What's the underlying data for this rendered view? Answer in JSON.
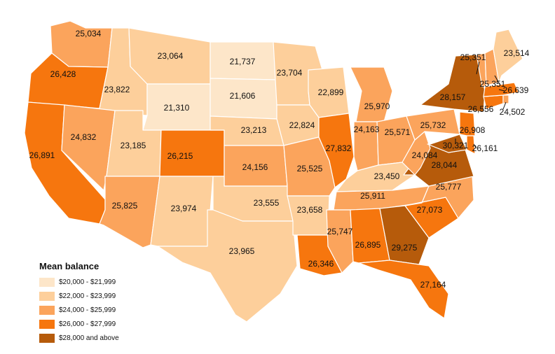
{
  "legend": {
    "title": "Mean balance",
    "bins": [
      {
        "label": "$20,000 - $21,999",
        "color": "#fde6c9"
      },
      {
        "label": "$22,000 - $23,999",
        "color": "#fdcf9b"
      },
      {
        "label": "$24,000 - $25,999",
        "color": "#fba45c"
      },
      {
        "label": "$26,000 - $27,999",
        "color": "#f6760e"
      },
      {
        "label": "$28,000 and above",
        "color": "#b65b0b"
      }
    ]
  },
  "states": [
    {
      "abbr": "WA",
      "value": "25,034",
      "bin": 2
    },
    {
      "abbr": "OR",
      "value": "26,428",
      "bin": 3
    },
    {
      "abbr": "CA",
      "value": "26,891",
      "bin": 3
    },
    {
      "abbr": "ID",
      "value": "23,822",
      "bin": 1
    },
    {
      "abbr": "NV",
      "value": "24,832",
      "bin": 2
    },
    {
      "abbr": "MT",
      "value": "23,064",
      "bin": 1
    },
    {
      "abbr": "WY",
      "value": "21,310",
      "bin": 0
    },
    {
      "abbr": "UT",
      "value": "23,185",
      "bin": 1
    },
    {
      "abbr": "AZ",
      "value": "25,825",
      "bin": 2
    },
    {
      "abbr": "CO",
      "value": "26,215",
      "bin": 3
    },
    {
      "abbr": "NM",
      "value": "23,974",
      "bin": 1
    },
    {
      "abbr": "ND",
      "value": "21,737",
      "bin": 0
    },
    {
      "abbr": "SD",
      "value": "21,606",
      "bin": 0
    },
    {
      "abbr": "NE",
      "value": "23,213",
      "bin": 1
    },
    {
      "abbr": "KS",
      "value": "24,156",
      "bin": 2
    },
    {
      "abbr": "OK",
      "value": "23,555",
      "bin": 1
    },
    {
      "abbr": "TX",
      "value": "23,965",
      "bin": 1
    },
    {
      "abbr": "MN",
      "value": "23,704",
      "bin": 1
    },
    {
      "abbr": "IA",
      "value": "22,824",
      "bin": 1
    },
    {
      "abbr": "MO",
      "value": "25,525",
      "bin": 2
    },
    {
      "abbr": "AR",
      "value": "23,658",
      "bin": 1
    },
    {
      "abbr": "LA",
      "value": "26,346",
      "bin": 3
    },
    {
      "abbr": "WI",
      "value": "22,899",
      "bin": 1
    },
    {
      "abbr": "IL",
      "value": "27,832",
      "bin": 3
    },
    {
      "abbr": "MI",
      "value": "25,970",
      "bin": 2
    },
    {
      "abbr": "IN",
      "value": "24,163",
      "bin": 2
    },
    {
      "abbr": "OH",
      "value": "25,571",
      "bin": 2
    },
    {
      "abbr": "KY",
      "value": "23,450",
      "bin": 1
    },
    {
      "abbr": "TN",
      "value": "25,911",
      "bin": 2
    },
    {
      "abbr": "MS",
      "value": "25,747",
      "bin": 2
    },
    {
      "abbr": "AL",
      "value": "26,895",
      "bin": 3
    },
    {
      "abbr": "GA",
      "value": "29,275",
      "bin": 4
    },
    {
      "abbr": "FL",
      "value": "27,164",
      "bin": 3
    },
    {
      "abbr": "SC",
      "value": "27,073",
      "bin": 3
    },
    {
      "abbr": "NC",
      "value": "25,777",
      "bin": 2
    },
    {
      "abbr": "VA",
      "value": "28,044",
      "bin": 4
    },
    {
      "abbr": "WV",
      "value": "24,084",
      "bin": 2
    },
    {
      "abbr": "PA",
      "value": "25,732",
      "bin": 2
    },
    {
      "abbr": "NY",
      "value": "28,157",
      "bin": 4
    },
    {
      "abbr": "MD",
      "value": "30,321",
      "bin": 4
    },
    {
      "abbr": "DE",
      "value": "26,161",
      "bin": 3
    },
    {
      "abbr": "NJ",
      "value": "26,908",
      "bin": 3
    },
    {
      "abbr": "CT",
      "value": "26,556",
      "bin": 3
    },
    {
      "abbr": "RI",
      "value": "24,502",
      "bin": 2
    },
    {
      "abbr": "MA",
      "value": "26,639",
      "bin": 3
    },
    {
      "abbr": "VT",
      "value": "25,351",
      "bin": 2
    },
    {
      "abbr": "NH",
      "value": "25,351",
      "bin": 2
    },
    {
      "abbr": "ME",
      "value": "23,514",
      "bin": 1
    }
  ]
}
